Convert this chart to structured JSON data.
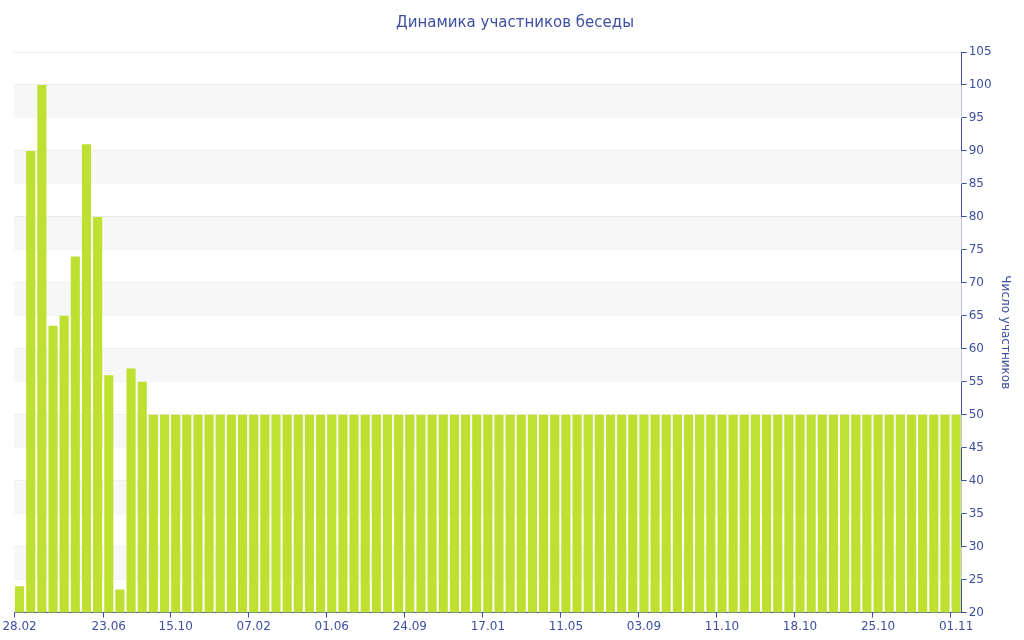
{
  "chart_data": {
    "type": "bar",
    "title": "Динамика участников беседы",
    "ylabel": "Число участников",
    "categories": [
      "28.02",
      null,
      null,
      null,
      null,
      null,
      null,
      null,
      "23.06",
      null,
      null,
      null,
      null,
      null,
      "15.10",
      null,
      null,
      null,
      null,
      null,
      null,
      "07.02",
      null,
      null,
      null,
      null,
      null,
      null,
      "01.06",
      null,
      null,
      null,
      null,
      null,
      null,
      "24.09",
      null,
      null,
      null,
      null,
      null,
      null,
      "17.01",
      null,
      null,
      null,
      null,
      null,
      null,
      "11.05",
      null,
      null,
      null,
      null,
      null,
      null,
      "03.09",
      null,
      null,
      null,
      null,
      null,
      null,
      "11.10",
      null,
      null,
      null,
      null,
      null,
      null,
      "18.10",
      null,
      null,
      null,
      null,
      null,
      null,
      "25.10",
      null,
      null,
      null,
      null,
      null,
      null,
      "01.11"
    ],
    "values": [
      24,
      90,
      100,
      63.5,
      65,
      74,
      91,
      80,
      56,
      23.5,
      57,
      55,
      50,
      50,
      50,
      50,
      50,
      50,
      50,
      50,
      50,
      50,
      50,
      50,
      50,
      50,
      50,
      50,
      50,
      50,
      50,
      50,
      50,
      50,
      50,
      50,
      50,
      50,
      50,
      50,
      50,
      50,
      50,
      50,
      50,
      50,
      50,
      50,
      50,
      50,
      50,
      50,
      50,
      50,
      50,
      50,
      50,
      50,
      50,
      50,
      50,
      50,
      50,
      50,
      50,
      50,
      50,
      50,
      50,
      50,
      50,
      50,
      50,
      50,
      50,
      50,
      50,
      50,
      50,
      50,
      50,
      50,
      50,
      50,
      50
    ],
    "color": "#bde031",
    "ylim": [
      20,
      105
    ],
    "yticks": [
      20,
      25,
      30,
      35,
      40,
      45,
      50,
      55,
      60,
      65,
      70,
      75,
      80,
      85,
      90,
      95,
      100,
      105
    ],
    "grid": "y",
    "legend": false
  }
}
